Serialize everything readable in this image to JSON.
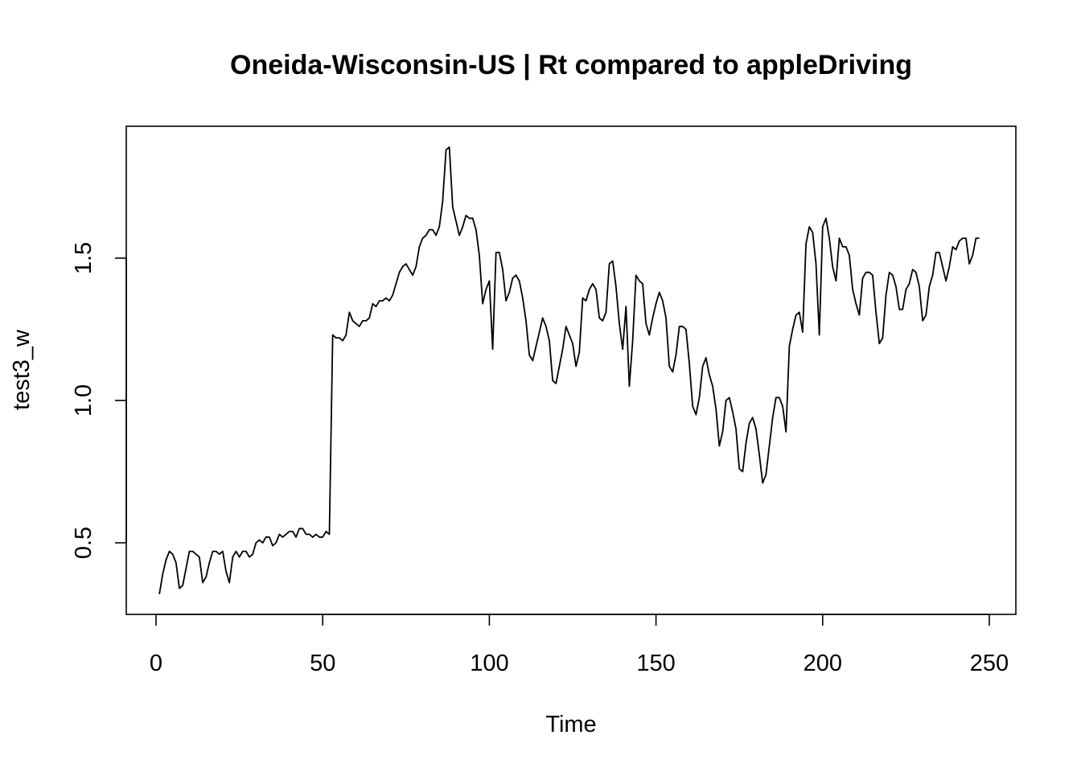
{
  "chart_data": {
    "type": "line",
    "title": "Oneida-Wisconsin-US | Rt compared to appleDriving",
    "xlabel": "Time",
    "ylabel": "test3_w",
    "xlim": [
      0,
      250
    ],
    "ylim": [
      0.3,
      1.9
    ],
    "x_ticks": [
      0,
      50,
      100,
      150,
      200,
      250
    ],
    "y_ticks": [
      0.5,
      1.0,
      1.5
    ],
    "x_tick_labels": [
      "0",
      "50",
      "100",
      "150",
      "200",
      "250"
    ],
    "y_tick_labels": [
      "0.5",
      "1.0",
      "1.5"
    ],
    "grid": false,
    "series": [
      {
        "x_start": 1,
        "values": [
          0.32,
          0.39,
          0.44,
          0.47,
          0.46,
          0.43,
          0.34,
          0.35,
          0.41,
          0.47,
          0.47,
          0.46,
          0.45,
          0.36,
          0.38,
          0.43,
          0.47,
          0.47,
          0.46,
          0.47,
          0.4,
          0.36,
          0.45,
          0.47,
          0.45,
          0.47,
          0.47,
          0.45,
          0.46,
          0.5,
          0.51,
          0.5,
          0.52,
          0.52,
          0.49,
          0.5,
          0.53,
          0.52,
          0.53,
          0.54,
          0.54,
          0.52,
          0.55,
          0.55,
          0.53,
          0.53,
          0.52,
          0.53,
          0.52,
          0.52,
          0.54,
          0.53,
          1.23,
          1.22,
          1.22,
          1.21,
          1.23,
          1.31,
          1.28,
          1.27,
          1.26,
          1.28,
          1.28,
          1.29,
          1.34,
          1.33,
          1.35,
          1.35,
          1.36,
          1.35,
          1.37,
          1.41,
          1.45,
          1.47,
          1.48,
          1.46,
          1.44,
          1.47,
          1.54,
          1.57,
          1.58,
          1.6,
          1.6,
          1.58,
          1.61,
          1.7,
          1.88,
          1.89,
          1.68,
          1.63,
          1.58,
          1.61,
          1.65,
          1.64,
          1.64,
          1.6,
          1.51,
          1.34,
          1.39,
          1.42,
          1.18,
          1.52,
          1.52,
          1.46,
          1.35,
          1.38,
          1.43,
          1.44,
          1.42,
          1.36,
          1.28,
          1.16,
          1.14,
          1.19,
          1.24,
          1.29,
          1.26,
          1.21,
          1.07,
          1.06,
          1.12,
          1.18,
          1.26,
          1.23,
          1.2,
          1.12,
          1.17,
          1.36,
          1.35,
          1.39,
          1.41,
          1.39,
          1.29,
          1.28,
          1.31,
          1.48,
          1.49,
          1.4,
          1.27,
          1.18,
          1.33,
          1.05,
          1.21,
          1.44,
          1.42,
          1.41,
          1.27,
          1.23,
          1.29,
          1.34,
          1.38,
          1.35,
          1.29,
          1.12,
          1.1,
          1.16,
          1.26,
          1.26,
          1.25,
          1.13,
          0.98,
          0.95,
          1.01,
          1.12,
          1.15,
          1.09,
          1.05,
          0.97,
          0.84,
          0.89,
          1.0,
          1.01,
          0.96,
          0.9,
          0.76,
          0.75,
          0.85,
          0.92,
          0.94,
          0.9,
          0.81,
          0.71,
          0.74,
          0.84,
          0.94,
          1.01,
          1.01,
          0.98,
          0.89,
          1.19,
          1.25,
          1.3,
          1.31,
          1.24,
          1.55,
          1.61,
          1.59,
          1.48,
          1.23,
          1.61,
          1.64,
          1.57,
          1.47,
          1.42,
          1.57,
          1.54,
          1.54,
          1.51,
          1.39,
          1.34,
          1.3,
          1.43,
          1.45,
          1.45,
          1.44,
          1.31,
          1.2,
          1.22,
          1.37,
          1.45,
          1.44,
          1.4,
          1.32,
          1.32,
          1.39,
          1.41,
          1.46,
          1.45,
          1.4,
          1.28,
          1.3,
          1.4,
          1.44,
          1.52,
          1.52,
          1.47,
          1.42,
          1.47,
          1.54,
          1.53,
          1.56,
          1.57,
          1.57,
          1.48,
          1.51,
          1.57,
          1.57
        ]
      }
    ]
  }
}
